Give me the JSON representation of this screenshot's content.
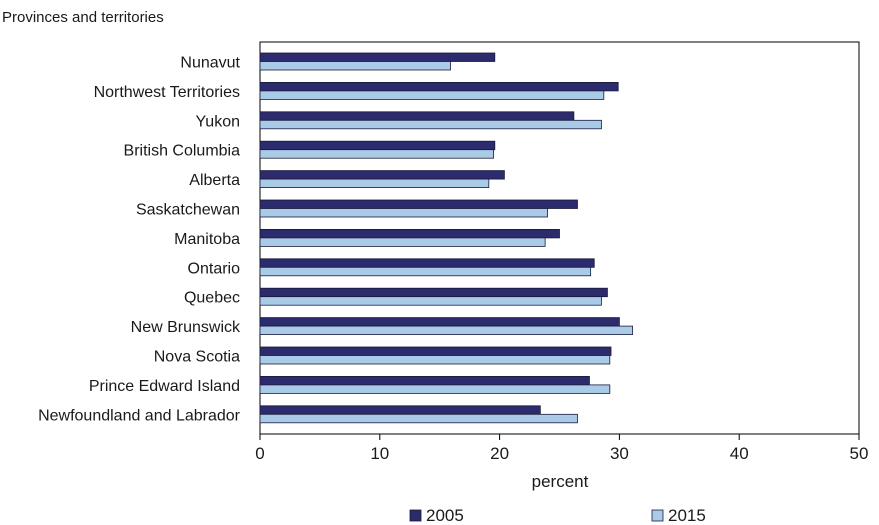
{
  "chart_data": {
    "type": "bar",
    "orientation": "horizontal",
    "category_axis_title": "Provinces and territories",
    "xlabel": "percent",
    "xlim": [
      0,
      50
    ],
    "xticks": [
      0,
      10,
      20,
      30,
      40,
      50
    ],
    "grid": false,
    "legend_position": "bottom",
    "categories": [
      "Nunavut",
      "Northwest Territories",
      "Yukon",
      "British Columbia",
      "Alberta",
      "Saskatchewan",
      "Manitoba",
      "Ontario",
      "Quebec",
      "New Brunswick",
      "Nova Scotia",
      "Prince Edward Island",
      "Newfoundland and Labrador"
    ],
    "series": [
      {
        "name": "2005",
        "color": "#2b2b6e",
        "values": [
          19.6,
          29.9,
          26.2,
          19.6,
          20.4,
          26.5,
          25.0,
          27.9,
          29.0,
          30.0,
          29.3,
          27.5,
          23.4
        ]
      },
      {
        "name": "2015",
        "color": "#a9cbe8",
        "values": [
          15.9,
          28.7,
          28.5,
          19.5,
          19.1,
          24.0,
          23.8,
          27.6,
          28.5,
          31.1,
          29.2,
          29.2,
          26.5
        ]
      }
    ]
  }
}
